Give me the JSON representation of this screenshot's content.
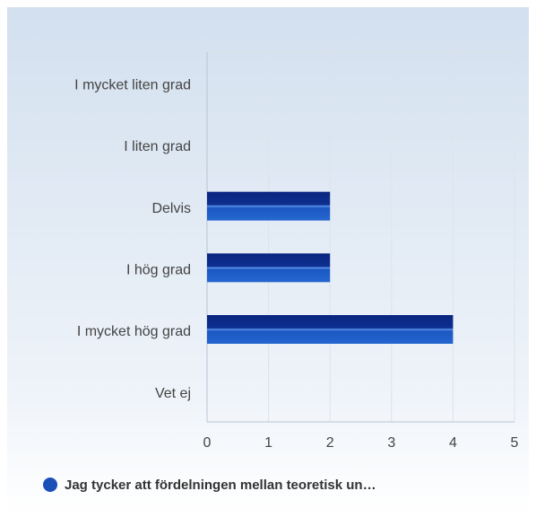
{
  "chart_data": {
    "type": "hbar",
    "categories": [
      "I mycket liten grad",
      "I liten grad",
      "Delvis",
      "I hög grad",
      "I mycket hög grad",
      "Vet ej"
    ],
    "series": [
      {
        "name": "Jag tycker att fördelningen mellan teoretisk un…",
        "color": "#1a4fb8",
        "values": [
          0,
          0,
          2,
          2,
          4,
          0
        ]
      }
    ],
    "xlim": [
      0,
      5
    ],
    "xticks": [
      0,
      1,
      2,
      3,
      4,
      5
    ],
    "grid": true
  }
}
